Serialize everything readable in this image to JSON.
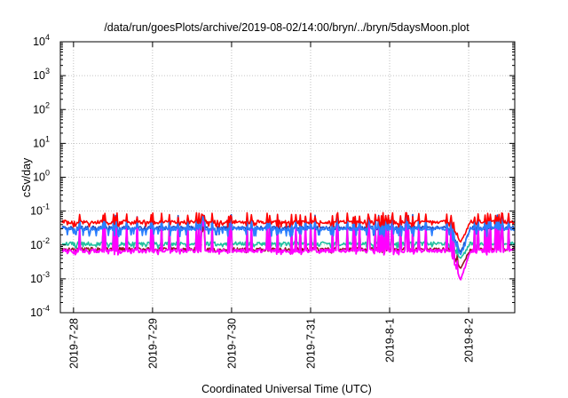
{
  "chart_data": {
    "type": "line",
    "title": "/data/run/goesPlots/archive/2019-08-02/14:00/bryn/../bryn/5daysMoon.plot",
    "xlabel": "Coordinated Universal Time (UTC)",
    "ylabel": "cSv/day",
    "y_scale": "log",
    "ylim": [
      0.0001,
      10000
    ],
    "y_ticks": [
      {
        "base": "10",
        "exp": "-4"
      },
      {
        "base": "10",
        "exp": "-3"
      },
      {
        "base": "10",
        "exp": "-2"
      },
      {
        "base": "10",
        "exp": "-1"
      },
      {
        "base": "10",
        "exp": "0"
      },
      {
        "base": "10",
        "exp": "1"
      },
      {
        "base": "10",
        "exp": "2"
      },
      {
        "base": "10",
        "exp": "3"
      },
      {
        "base": "10",
        "exp": "4"
      }
    ],
    "xlim": [
      "2019-07-27T20:00",
      "2019-08-02T14:00"
    ],
    "x_ticks": [
      "2019-7-28",
      "2019-7-29",
      "2019-7-30",
      "2019-7-31",
      "2019-8-1",
      "2019-8-2"
    ],
    "x_tick_dates": [
      "2019-07-28",
      "2019-07-29",
      "2019-07-30",
      "2019-07-31",
      "2019-08-01",
      "2019-08-02"
    ],
    "grid": true,
    "series": [
      {
        "color": "#ff0000",
        "base": 0.048,
        "low": 0.038,
        "spike": 0.09,
        "dip": 0.012
      },
      {
        "color": "#1f4fbf",
        "base": 0.032,
        "low": 0.022,
        "spike": 0.08,
        "dip": 0.006
      },
      {
        "color": "#2a7fff",
        "base": 0.03,
        "low": 0.02,
        "spike": 0.075,
        "dip": 0.005
      },
      {
        "color": "#20c0a0",
        "base": 0.011,
        "low": 0.009,
        "spike": 0.06,
        "dip": 0.004
      },
      {
        "color": "#8b1a1a",
        "base": 0.0075,
        "low": 0.0065,
        "spike": 0.05,
        "dip": 0.002
      },
      {
        "color": "#ff00ff",
        "base": 0.0068,
        "low": 0.0058,
        "spike": 0.07,
        "dip": 0.0009
      }
    ],
    "dip_event": "2019-08-01T21:30"
  }
}
